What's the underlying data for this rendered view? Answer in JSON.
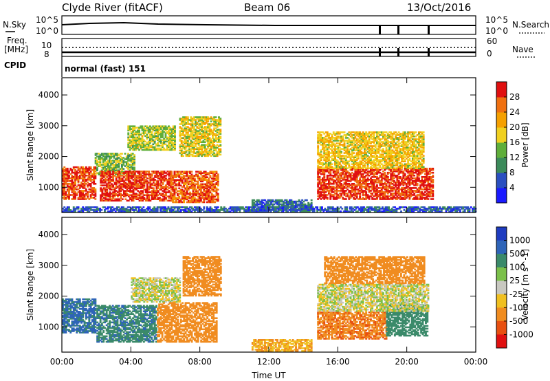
{
  "header": {
    "station": "Clyde River (fitACF)",
    "beam": "Beam 06",
    "date": "13/Oct/2016"
  },
  "noise_panel": {
    "left_label": "N.Sky",
    "right_label": "N.Search",
    "left_ticks": [
      "10^5",
      "10^0"
    ],
    "right_ticks": [
      "10^5",
      "10^0"
    ]
  },
  "freq_panel": {
    "left_label_line1": "Freq.",
    "left_label_line2": "[MHz]",
    "left_ticks": [
      "10",
      "8"
    ],
    "right_label": "Nave",
    "right_ticks": [
      "60",
      "0"
    ]
  },
  "cpid": {
    "label": "CPID",
    "value": "normal (fast) 151"
  },
  "colors": {
    "power": [
      "#1a1aff",
      "#2a4fc0",
      "#3b8a5a",
      "#5fae3a",
      "#f0d020",
      "#f5a000",
      "#f07010",
      "#e01010"
    ],
    "velocity": [
      "#1e3cc0",
      "#2e64b8",
      "#3b8a6a",
      "#7bc04a",
      "#c8c8c0",
      "#f0c020",
      "#f08c20",
      "#e85010",
      "#e01010"
    ]
  },
  "chart_data": [
    {
      "type": "heatmap",
      "panel": "power",
      "ylabel": "Slant Range [km]",
      "y_ticks": [
        "1000",
        "2000",
        "3000",
        "4000"
      ],
      "x_ticks": [
        "00:00",
        "04:00",
        "08:00",
        "12:00",
        "16:00",
        "20:00",
        "00:00"
      ],
      "xlim_hours": [
        0,
        24
      ],
      "ylim_km": [
        180,
        4560
      ],
      "colorbar_label": "Power [dB]",
      "colorbar_ticks": [
        "4",
        "8",
        "12",
        "16",
        "20",
        "24",
        "28"
      ],
      "colorbar_range": [
        0,
        30
      ],
      "regions": [
        {
          "t0": 0.0,
          "t1": 1.9,
          "r0": 600,
          "r1": 1650,
          "value": 26
        },
        {
          "t0": 1.9,
          "t1": 4.2,
          "r0": 1400,
          "r1": 2100,
          "value": 13
        },
        {
          "t0": 2.2,
          "t1": 6.3,
          "r0": 550,
          "r1": 1500,
          "value": 27
        },
        {
          "t0": 3.8,
          "t1": 6.5,
          "r0": 2200,
          "r1": 3000,
          "value": 15
        },
        {
          "t0": 6.3,
          "t1": 9.0,
          "r0": 500,
          "r1": 1500,
          "value": 25
        },
        {
          "t0": 6.8,
          "t1": 9.2,
          "r0": 2000,
          "r1": 3300,
          "value": 17
        },
        {
          "t0": 11.0,
          "t1": 14.5,
          "r0": 250,
          "r1": 600,
          "value": 7
        },
        {
          "t0": 14.8,
          "t1": 21.5,
          "r0": 600,
          "r1": 1600,
          "value": 27
        },
        {
          "t0": 14.8,
          "t1": 21.0,
          "r0": 1600,
          "r1": 2800,
          "value": 18
        },
        {
          "t0": 0.0,
          "t1": 24.0,
          "r0": 200,
          "r1": 380,
          "value": 6
        }
      ]
    },
    {
      "type": "heatmap",
      "panel": "velocity",
      "ylabel": "Slant Range [km]",
      "y_ticks": [
        "1000",
        "2000",
        "3000",
        "4000"
      ],
      "x_ticks": [
        "00:00",
        "04:00",
        "08:00",
        "12:00",
        "16:00",
        "20:00",
        "00:00"
      ],
      "xlabel": "Time UT",
      "xlim_hours": [
        0,
        24
      ],
      "ylim_km": [
        180,
        4560
      ],
      "colorbar_label": "Velocity [m s^-1]",
      "colorbar_ticks": [
        "1000",
        "500",
        "100",
        "25",
        "-25",
        "-100",
        "-500",
        "-1000"
      ],
      "regions": [
        {
          "t0": 0.0,
          "t1": 1.9,
          "r0": 800,
          "r1": 1900,
          "value": 300
        },
        {
          "t0": 2.0,
          "t1": 5.5,
          "r0": 500,
          "r1": 1700,
          "value": 200
        },
        {
          "t0": 4.0,
          "t1": 6.8,
          "r0": 1800,
          "r1": 2600,
          "value": 0
        },
        {
          "t0": 5.5,
          "t1": 9.0,
          "r0": 500,
          "r1": 1800,
          "value": -150
        },
        {
          "t0": 7.0,
          "t1": 9.2,
          "r0": 2000,
          "r1": 3300,
          "value": -120
        },
        {
          "t0": 11.0,
          "t1": 14.5,
          "r0": 200,
          "r1": 600,
          "value": -60
        },
        {
          "t0": 14.8,
          "t1": 18.8,
          "r0": 600,
          "r1": 1500,
          "value": -200
        },
        {
          "t0": 18.8,
          "t1": 21.2,
          "r0": 700,
          "r1": 1700,
          "value": 150
        },
        {
          "t0": 14.8,
          "t1": 21.2,
          "r0": 1500,
          "r1": 2400,
          "value": 0
        },
        {
          "t0": 15.2,
          "t1": 21.0,
          "r0": 2400,
          "r1": 3300,
          "value": -150
        }
      ]
    }
  ]
}
